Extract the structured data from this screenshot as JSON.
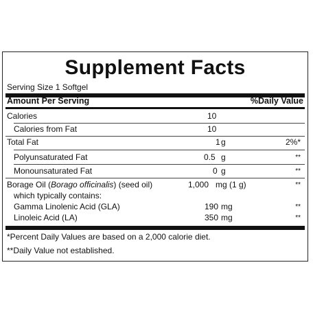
{
  "title": "Supplement Facts",
  "serving_size": "Serving Size 1 Softgel",
  "header": {
    "amount": "Amount Per Serving",
    "dv": "%Daily Value"
  },
  "rows": [
    {
      "name": "Calories",
      "amount": "10",
      "unit": "",
      "dv": ""
    },
    {
      "name": "Calories from Fat",
      "amount": "10",
      "unit": "",
      "dv": ""
    },
    {
      "name": "Total Fat",
      "amount": "1",
      "unit": "g",
      "dv": "2%*"
    },
    {
      "name": "Polyunsaturated Fat",
      "amount": "0.5",
      "unit": "g",
      "dv": "**"
    },
    {
      "name": "Monounsaturated Fat",
      "amount": "0",
      "unit": "g",
      "dv": "**"
    },
    {
      "name_main": "Borage Oil (",
      "name_italic": "Borago officinalis",
      "name_rest": ") (seed oil)",
      "amount": "1,000",
      "unit": "mg (1 g)",
      "dv": "**"
    },
    {
      "name": "which typically contains:"
    },
    {
      "name": "Gamma Linolenic Acid (GLA)",
      "amount": "190",
      "unit": "mg",
      "dv": "**"
    },
    {
      "name": "Linoleic Acid (LA)",
      "amount": "350",
      "unit": "mg",
      "dv": "**"
    }
  ],
  "footnotes": [
    "*Percent Daily Values are based on a 2,000 calorie diet.",
    "**Daily Value not established."
  ]
}
